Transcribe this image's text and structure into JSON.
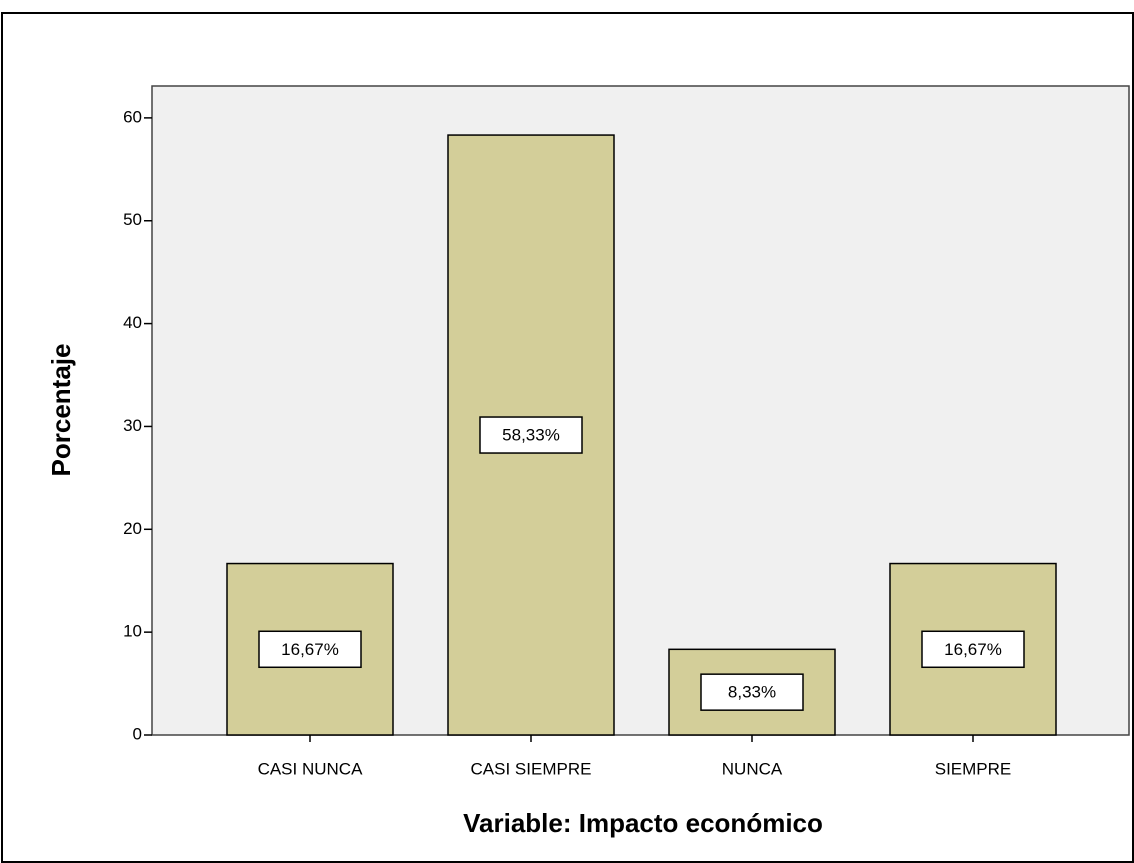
{
  "chart_data": {
    "type": "bar",
    "x_label": "Variable: Impacto económico",
    "y_label": "Porcentaje",
    "categories": [
      "CASI NUNCA",
      "CASI SIEMPRE",
      "NUNCA",
      "SIEMPRE"
    ],
    "values": [
      16.67,
      58.33,
      8.33,
      16.67
    ],
    "value_labels": [
      "16,67%",
      "58,33%",
      "8,33%",
      "16,67%"
    ],
    "color": "#d3ce99",
    "ylim": [
      0,
      63.1
    ],
    "yticks": [
      0,
      10,
      20,
      30,
      40,
      50,
      60
    ]
  }
}
